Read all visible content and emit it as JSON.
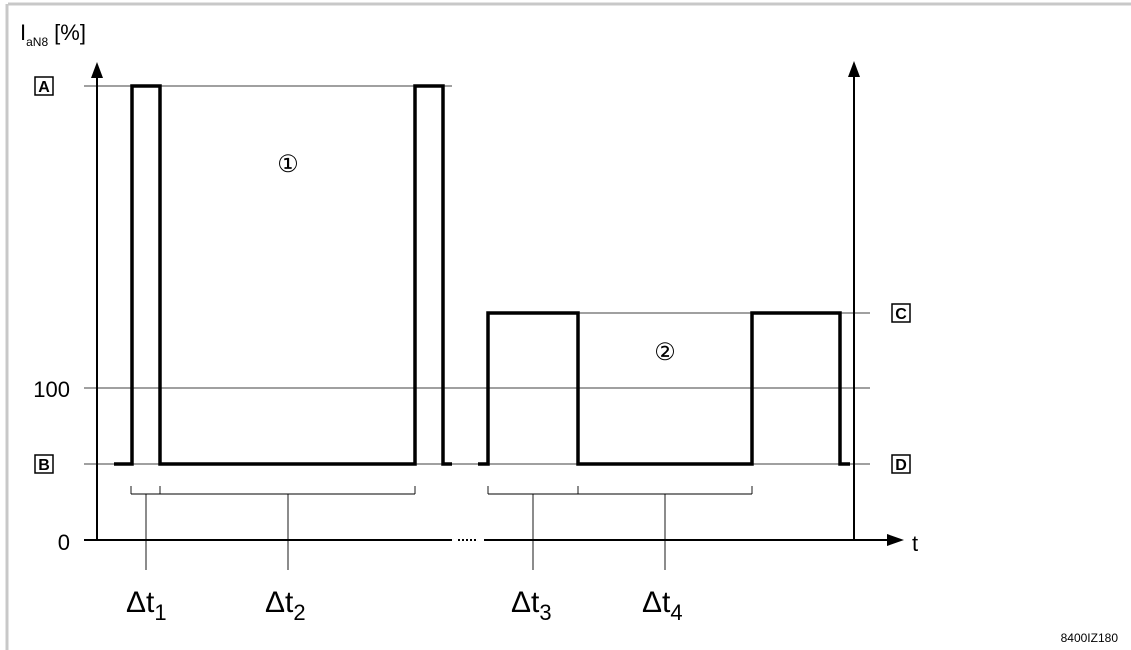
{
  "diagram": {
    "y_axis_label": "I",
    "y_axis_label_sub": "aN8",
    "y_axis_unit": "[%]",
    "x_axis_label": "t",
    "ticks": {
      "zero": "0",
      "hundred": "100"
    },
    "level_markers": {
      "a": "A",
      "b": "B",
      "c": "C",
      "d": "D"
    },
    "region_markers": {
      "one": "①",
      "two": "②"
    },
    "intervals": [
      {
        "symbol": "Δt",
        "sub": "1"
      },
      {
        "symbol": "Δt",
        "sub": "2"
      },
      {
        "symbol": "Δt",
        "sub": "3"
      },
      {
        "symbol": "Δt",
        "sub": "4"
      }
    ],
    "figure_code": "8400IZ180"
  }
}
